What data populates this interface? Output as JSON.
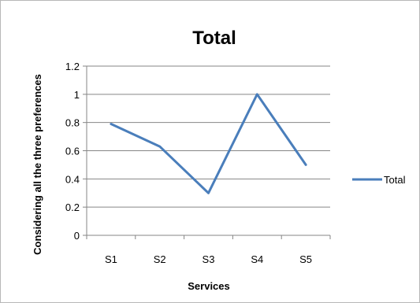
{
  "chart_data": {
    "type": "line",
    "title": "Total",
    "xlabel": "Services",
    "ylabel": "Considering all the three preferences",
    "categories": [
      "S1",
      "S2",
      "S3",
      "S4",
      "S5"
    ],
    "series": [
      {
        "name": "Total",
        "values": [
          0.79,
          0.63,
          0.3,
          1.0,
          0.5
        ],
        "color": "#4a7ebb"
      }
    ],
    "ylim": [
      0,
      1.2
    ],
    "yticks": [
      "0",
      "0.2",
      "0.4",
      "0.6",
      "0.8",
      "1",
      "1.2"
    ],
    "grid": true,
    "legend_position": "right"
  }
}
